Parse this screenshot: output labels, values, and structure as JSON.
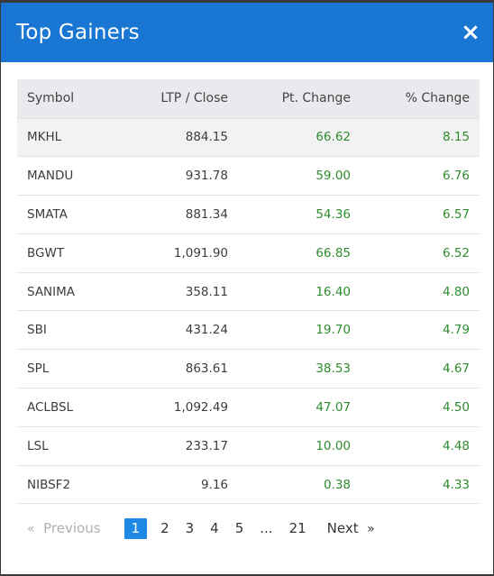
{
  "modal": {
    "title": "Top Gainers",
    "close_label": "×"
  },
  "table": {
    "headers": {
      "symbol": "Symbol",
      "ltp": "LTP / Close",
      "pt_change": "Pt. Change",
      "pct_change": "% Change"
    },
    "rows": [
      {
        "symbol": "MKHL",
        "ltp": "884.15",
        "pt": "66.62",
        "pct": "8.15"
      },
      {
        "symbol": "MANDU",
        "ltp": "931.78",
        "pt": "59.00",
        "pct": "6.76"
      },
      {
        "symbol": "SMATA",
        "ltp": "881.34",
        "pt": "54.36",
        "pct": "6.57"
      },
      {
        "symbol": "BGWT",
        "ltp": "1,091.90",
        "pt": "66.85",
        "pct": "6.52"
      },
      {
        "symbol": "SANIMA",
        "ltp": "358.11",
        "pt": "16.40",
        "pct": "4.80"
      },
      {
        "symbol": "SBI",
        "ltp": "431.24",
        "pt": "19.70",
        "pct": "4.79"
      },
      {
        "symbol": "SPL",
        "ltp": "863.61",
        "pt": "38.53",
        "pct": "4.67"
      },
      {
        "symbol": "ACLBSL",
        "ltp": "1,092.49",
        "pt": "47.07",
        "pct": "4.50"
      },
      {
        "symbol": "LSL",
        "ltp": "233.17",
        "pt": "10.00",
        "pct": "4.48"
      },
      {
        "symbol": "NIBSF2",
        "ltp": "9.16",
        "pt": "0.38",
        "pct": "4.33"
      }
    ]
  },
  "pagination": {
    "prev_arrow": "«",
    "prev_label": "Previous",
    "pages": [
      "1",
      "2",
      "3",
      "4",
      "5",
      "...",
      "21"
    ],
    "active_page": "1",
    "next_label": "Next",
    "next_arrow": "»"
  },
  "colors": {
    "header_bg": "#1976d2",
    "positive": "#2e8b2e",
    "active_page": "#1e88e5"
  }
}
